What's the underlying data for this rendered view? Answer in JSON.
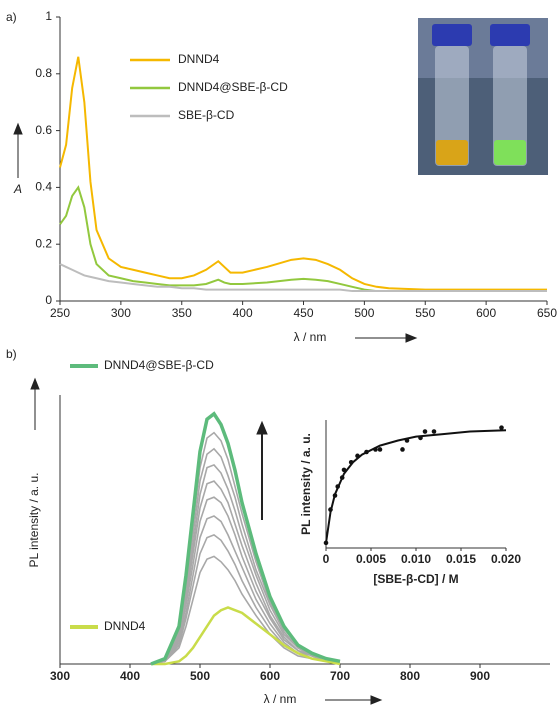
{
  "chart_data": [
    {
      "type": "line",
      "panel_label": "a)",
      "x_label": "λ / nm",
      "y_label": "A",
      "legend": "upper center",
      "xlim": [
        250,
        650
      ],
      "xticks": [
        250,
        300,
        350,
        400,
        450,
        500,
        550,
        600,
        650
      ],
      "ylim": [
        0,
        1
      ],
      "yticks": [
        0,
        0.2,
        0.4,
        0.6,
        0.8,
        1
      ],
      "x": [
        250,
        255,
        260,
        265,
        270,
        275,
        280,
        290,
        300,
        310,
        320,
        330,
        340,
        350,
        360,
        370,
        380,
        385,
        390,
        400,
        420,
        440,
        450,
        460,
        470,
        480,
        490,
        500,
        510,
        520,
        550,
        600,
        650
      ],
      "series": [
        {
          "name": "DNND4",
          "color": "#f5b800",
          "values": [
            0.47,
            0.55,
            0.75,
            0.86,
            0.7,
            0.42,
            0.25,
            0.15,
            0.12,
            0.11,
            0.1,
            0.09,
            0.08,
            0.08,
            0.09,
            0.11,
            0.14,
            0.12,
            0.1,
            0.1,
            0.12,
            0.145,
            0.15,
            0.145,
            0.13,
            0.11,
            0.08,
            0.06,
            0.05,
            0.045,
            0.04,
            0.04,
            0.04
          ]
        },
        {
          "name": "DNND4@SBE-β-CD",
          "color": "#92c83e",
          "values": [
            0.27,
            0.3,
            0.37,
            0.4,
            0.33,
            0.2,
            0.13,
            0.09,
            0.08,
            0.07,
            0.065,
            0.06,
            0.055,
            0.055,
            0.055,
            0.06,
            0.075,
            0.065,
            0.06,
            0.06,
            0.065,
            0.075,
            0.078,
            0.075,
            0.07,
            0.06,
            0.05,
            0.04,
            0.035,
            0.035,
            0.035,
            0.035,
            0.035
          ]
        },
        {
          "name": "SBE-β-CD",
          "color": "#bdbdbd",
          "values": [
            0.13,
            0.12,
            0.11,
            0.1,
            0.09,
            0.085,
            0.08,
            0.07,
            0.065,
            0.06,
            0.055,
            0.05,
            0.05,
            0.045,
            0.045,
            0.04,
            0.04,
            0.04,
            0.04,
            0.04,
            0.04,
            0.04,
            0.04,
            0.04,
            0.04,
            0.04,
            0.035,
            0.035,
            0.035,
            0.035,
            0.035,
            0.035,
            0.035
          ]
        }
      ]
    },
    {
      "type": "line",
      "panel_label": "b)",
      "x_label": "λ / nm",
      "y_label": "PL intensity / a. u.",
      "xlim": [
        300,
        1000
      ],
      "xticks": [
        300,
        400,
        500,
        600,
        700,
        800,
        900
      ],
      "ylim": [
        0,
        100
      ],
      "x": [
        430,
        450,
        470,
        480,
        490,
        500,
        510,
        520,
        530,
        540,
        550,
        560,
        580,
        600,
        620,
        640,
        660,
        680,
        700
      ],
      "series": [
        {
          "color": "#a8a8a8",
          "values": [
            0,
            1,
            6,
            14,
            24,
            34,
            39,
            40,
            38,
            35,
            31,
            26,
            18,
            11,
            6,
            3,
            2,
            1,
            0
          ]
        },
        {
          "color": "#a8a8a8",
          "values": [
            0,
            1,
            7,
            17,
            29,
            41,
            47,
            48,
            46,
            42,
            37,
            31,
            21,
            13,
            7,
            4,
            2,
            1,
            0
          ]
        },
        {
          "color": "#a8a8a8",
          "values": [
            0,
            1,
            8,
            19,
            33,
            47,
            54,
            55,
            53,
            48,
            42,
            36,
            24,
            15,
            8,
            4,
            2,
            1,
            1
          ]
        },
        {
          "color": "#a8a8a8",
          "values": [
            0,
            1,
            9,
            22,
            37,
            53,
            61,
            62,
            60,
            55,
            48,
            40,
            27,
            17,
            9,
            5,
            2,
            1,
            1
          ]
        },
        {
          "color": "#a8a8a8",
          "values": [
            0,
            1,
            10,
            24,
            41,
            58,
            67,
            68,
            65,
            60,
            52,
            44,
            30,
            18,
            10,
            5,
            3,
            1,
            1
          ]
        },
        {
          "color": "#a8a8a8",
          "values": [
            0,
            1,
            11,
            26,
            44,
            63,
            73,
            74,
            71,
            65,
            57,
            48,
            33,
            20,
            11,
            6,
            3,
            1,
            1
          ]
        },
        {
          "color": "#a8a8a8",
          "values": [
            0,
            2,
            12,
            28,
            48,
            68,
            78,
            80,
            77,
            70,
            62,
            52,
            35,
            22,
            12,
            6,
            3,
            2,
            1
          ]
        },
        {
          "color": "#a8a8a8",
          "values": [
            0,
            2,
            13,
            30,
            52,
            73,
            84,
            86,
            83,
            76,
            66,
            56,
            38,
            23,
            13,
            7,
            3,
            2,
            1
          ]
        },
        {
          "name": "DNND4",
          "color": "#c9dc4a",
          "values": [
            0,
            0,
            1,
            3,
            6,
            10,
            14,
            18,
            20,
            21,
            20,
            19,
            15,
            11,
            7,
            4,
            2,
            1,
            0
          ]
        },
        {
          "name": "DNND4@SBE-β-CD",
          "color": "#5dbb7c",
          "values": [
            0,
            2,
            14,
            33,
            56,
            79,
            91,
            93,
            89,
            82,
            72,
            60,
            41,
            25,
            14,
            7,
            4,
            2,
            1
          ]
        }
      ]
    },
    {
      "type": "scatter",
      "x_label": "[SBE-β-CD] / M",
      "y_label": "PL intensity / a. u.",
      "xlim": [
        0,
        0.02
      ],
      "xticks": [
        0,
        0.005,
        {
          "value": 0.01,
          "label": "0.010"
        },
        0.015,
        {
          "value": 0.02,
          "label": "0.020"
        }
      ],
      "ylim": [
        0,
        1
      ],
      "x": [
        0,
        0.0005,
        0.001,
        0.0013,
        0.0018,
        0.002,
        0.0028,
        0.0035,
        0.0045,
        0.0055,
        0.006,
        0.0085,
        0.009,
        0.0105,
        0.011,
        0.012,
        0.0195
      ],
      "values": [
        0.04,
        0.3,
        0.41,
        0.48,
        0.55,
        0.61,
        0.67,
        0.72,
        0.75,
        0.77,
        0.77,
        0.77,
        0.84,
        0.86,
        0.91,
        0.91,
        0.94
      ],
      "color": "#111111",
      "fit_x": [
        0,
        0.0005,
        0.001,
        0.002,
        0.003,
        0.004,
        0.006,
        0.008,
        0.01,
        0.013,
        0.016,
        0.02
      ],
      "fit_values": [
        0.04,
        0.28,
        0.42,
        0.58,
        0.67,
        0.73,
        0.8,
        0.84,
        0.87,
        0.89,
        0.91,
        0.92
      ]
    }
  ]
}
